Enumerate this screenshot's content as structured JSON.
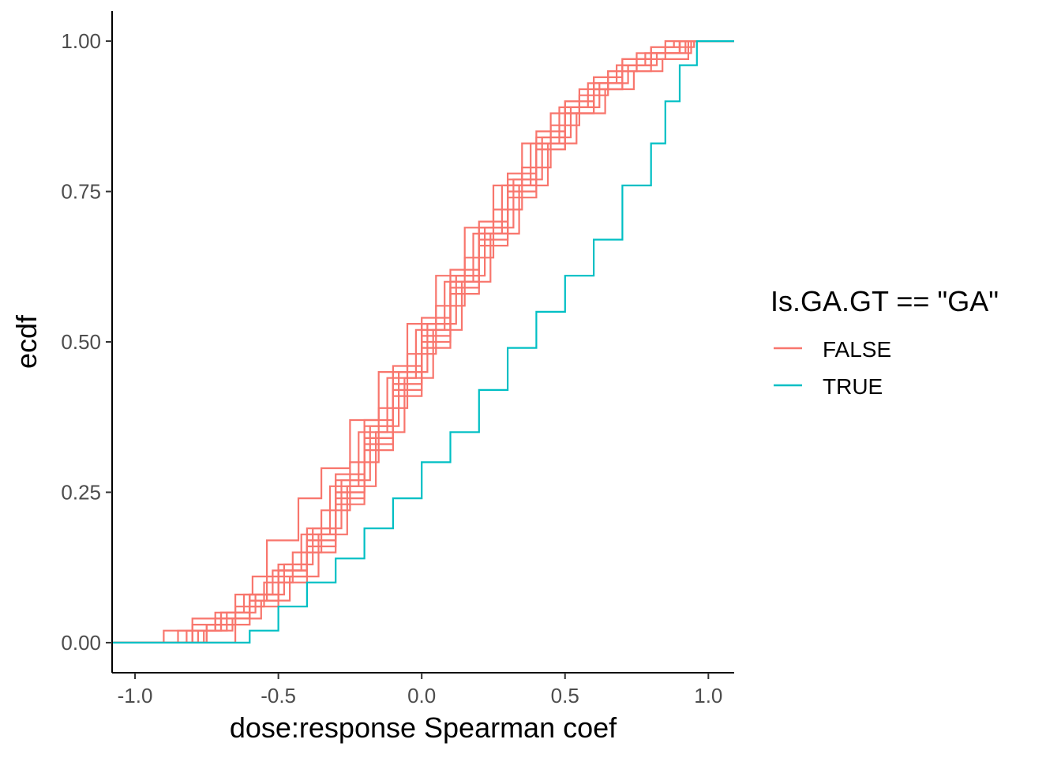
{
  "chart_data": {
    "type": "line",
    "xlabel": "dose:response Spearman coef",
    "ylabel": "ecdf",
    "xlim": [
      -1.08,
      1.09
    ],
    "ylim": [
      -0.05,
      1.05
    ],
    "x_ticks": [
      {
        "value": -1.0,
        "label": "-1.0"
      },
      {
        "value": -0.5,
        "label": "-0.5"
      },
      {
        "value": 0.0,
        "label": "0.0"
      },
      {
        "value": 0.5,
        "label": "0.5"
      },
      {
        "value": 1.0,
        "label": "1.0"
      }
    ],
    "y_ticks": [
      {
        "value": 0.0,
        "label": "0.00"
      },
      {
        "value": 0.25,
        "label": "0.25"
      },
      {
        "value": 0.5,
        "label": "0.50"
      },
      {
        "value": 0.75,
        "label": "0.75"
      },
      {
        "value": 1.0,
        "label": "1.00"
      }
    ],
    "grid": false,
    "legend": {
      "title": "Is.GA.GT == \"GA\"",
      "position": "right",
      "entries": [
        {
          "label": "FALSE",
          "color": "#F8766D"
        },
        {
          "label": "TRUE",
          "color": "#00BFC4"
        }
      ]
    },
    "series": [
      {
        "name": "FALSE",
        "color": "#F8766D",
        "x": [
          -1.08,
          -0.95,
          -0.9,
          -0.8,
          -0.7,
          -0.6,
          -0.5,
          -0.4,
          -0.3,
          -0.2,
          -0.1,
          0.0,
          0.1,
          0.2,
          0.3,
          0.4,
          0.5,
          0.6,
          0.7,
          0.8,
          0.9,
          1.09
        ],
        "y": [
          0.0,
          0.0,
          0.02,
          0.04,
          0.05,
          0.08,
          0.12,
          0.18,
          0.27,
          0.36,
          0.45,
          0.53,
          0.61,
          0.69,
          0.77,
          0.84,
          0.9,
          0.94,
          0.97,
          0.99,
          1.0,
          1.0
        ]
      },
      {
        "name": "FALSE",
        "color": "#F8766D",
        "x": [
          -1.08,
          -0.9,
          -0.8,
          -0.7,
          -0.6,
          -0.5,
          -0.4,
          -0.3,
          -0.2,
          -0.1,
          0.0,
          0.1,
          0.2,
          0.3,
          0.4,
          0.5,
          0.6,
          0.7,
          0.8,
          0.9,
          1.09
        ],
        "y": [
          0.0,
          0.0,
          0.02,
          0.04,
          0.06,
          0.1,
          0.15,
          0.23,
          0.32,
          0.41,
          0.49,
          0.58,
          0.66,
          0.74,
          0.82,
          0.89,
          0.93,
          0.96,
          0.98,
          1.0,
          1.0
        ]
      },
      {
        "name": "FALSE",
        "color": "#F8766D",
        "x": [
          -1.08,
          -0.92,
          -0.8,
          -0.7,
          -0.6,
          -0.5,
          -0.4,
          -0.3,
          -0.2,
          -0.1,
          0.0,
          0.1,
          0.2,
          0.3,
          0.4,
          0.5,
          0.6,
          0.7,
          0.8,
          0.9,
          1.09
        ],
        "y": [
          0.0,
          0.0,
          0.03,
          0.05,
          0.08,
          0.12,
          0.17,
          0.25,
          0.33,
          0.42,
          0.5,
          0.59,
          0.67,
          0.75,
          0.82,
          0.88,
          0.92,
          0.96,
          0.98,
          1.0,
          1.0
        ]
      },
      {
        "name": "FALSE",
        "color": "#F8766D",
        "x": [
          -1.08,
          -0.85,
          -0.75,
          -0.65,
          -0.55,
          -0.45,
          -0.35,
          -0.25,
          -0.15,
          -0.05,
          0.05,
          0.15,
          0.25,
          0.35,
          0.45,
          0.55,
          0.65,
          0.75,
          0.85,
          1.09
        ],
        "y": [
          0.0,
          0.0,
          0.03,
          0.06,
          0.1,
          0.15,
          0.22,
          0.3,
          0.39,
          0.48,
          0.56,
          0.64,
          0.72,
          0.79,
          0.86,
          0.91,
          0.95,
          0.98,
          1.0,
          1.0
        ]
      },
      {
        "name": "FALSE",
        "color": "#F8766D",
        "x": [
          -1.08,
          -0.95,
          -0.85,
          -0.72,
          -0.6,
          -0.5,
          -0.4,
          -0.3,
          -0.2,
          -0.1,
          0.0,
          0.1,
          0.2,
          0.3,
          0.4,
          0.5,
          0.6,
          0.7,
          0.8,
          0.92,
          1.09
        ],
        "y": [
          0.0,
          0.0,
          0.02,
          0.04,
          0.07,
          0.11,
          0.16,
          0.24,
          0.34,
          0.43,
          0.52,
          0.6,
          0.68,
          0.76,
          0.83,
          0.88,
          0.92,
          0.95,
          0.98,
          1.0,
          1.0
        ]
      },
      {
        "name": "FALSE",
        "color": "#F8766D",
        "x": [
          -1.08,
          -0.9,
          -0.75,
          -0.6,
          -0.5,
          -0.4,
          -0.3,
          -0.2,
          -0.1,
          0.0,
          0.1,
          0.2,
          0.3,
          0.4,
          0.5,
          0.6,
          0.7,
          0.8,
          0.88,
          1.09
        ],
        "y": [
          0.0,
          0.0,
          0.03,
          0.07,
          0.12,
          0.19,
          0.28,
          0.37,
          0.46,
          0.54,
          0.62,
          0.7,
          0.78,
          0.85,
          0.9,
          0.94,
          0.97,
          0.99,
          1.0,
          1.0
        ]
      },
      {
        "name": "FALSE",
        "color": "#F8766D",
        "x": [
          -1.08,
          -0.88,
          -0.78,
          -0.68,
          -0.58,
          -0.48,
          -0.38,
          -0.28,
          -0.18,
          -0.08,
          0.02,
          0.12,
          0.22,
          0.32,
          0.42,
          0.52,
          0.62,
          0.72,
          0.82,
          0.94,
          1.09
        ],
        "y": [
          0.0,
          0.0,
          0.02,
          0.05,
          0.08,
          0.13,
          0.19,
          0.27,
          0.36,
          0.45,
          0.53,
          0.61,
          0.69,
          0.77,
          0.84,
          0.89,
          0.93,
          0.96,
          0.98,
          1.0,
          1.0
        ]
      },
      {
        "name": "FALSE",
        "color": "#F8766D",
        "x": [
          -1.08,
          -0.73,
          -0.65,
          -0.59,
          -0.5,
          -0.4,
          -0.3,
          -0.2,
          -0.1,
          0.0,
          0.1,
          0.2,
          0.3,
          0.4,
          0.5,
          0.6,
          0.7,
          0.8,
          0.9,
          1.09
        ],
        "y": [
          0.0,
          0.0,
          0.08,
          0.11,
          0.13,
          0.17,
          0.25,
          0.34,
          0.43,
          0.51,
          0.6,
          0.68,
          0.76,
          0.83,
          0.89,
          0.93,
          0.96,
          0.98,
          1.0,
          1.0
        ]
      },
      {
        "name": "FALSE",
        "color": "#F8766D",
        "x": [
          -1.08,
          -0.9,
          -0.8,
          -0.7,
          -0.6,
          -0.54,
          -0.43,
          -0.35,
          -0.25,
          -0.15,
          -0.05,
          0.05,
          0.15,
          0.25,
          0.35,
          0.45,
          0.55,
          0.65,
          0.75,
          0.85,
          0.95,
          1.09
        ],
        "y": [
          0.0,
          0.0,
          0.02,
          0.04,
          0.07,
          0.17,
          0.24,
          0.29,
          0.37,
          0.45,
          0.53,
          0.61,
          0.69,
          0.76,
          0.83,
          0.88,
          0.92,
          0.95,
          0.97,
          0.99,
          1.0,
          1.0
        ]
      },
      {
        "name": "FALSE",
        "color": "#F8766D",
        "x": [
          -1.08,
          -0.86,
          -0.76,
          -0.66,
          -0.56,
          -0.46,
          -0.36,
          -0.26,
          -0.16,
          -0.06,
          0.04,
          0.14,
          0.24,
          0.34,
          0.44,
          0.54,
          0.64,
          0.74,
          0.84,
          0.93,
          1.09
        ],
        "y": [
          0.0,
          0.0,
          0.02,
          0.04,
          0.07,
          0.11,
          0.18,
          0.26,
          0.35,
          0.44,
          0.52,
          0.6,
          0.68,
          0.76,
          0.83,
          0.88,
          0.92,
          0.95,
          0.97,
          1.0,
          1.0
        ]
      },
      {
        "name": "FALSE",
        "color": "#F8766D",
        "x": [
          -1.08,
          -0.92,
          -0.82,
          -0.72,
          -0.62,
          -0.52,
          -0.42,
          -0.32,
          -0.22,
          -0.12,
          -0.02,
          0.08,
          0.18,
          0.28,
          0.38,
          0.48,
          0.58,
          0.68,
          0.78,
          0.9,
          1.09
        ],
        "y": [
          0.0,
          0.0,
          0.02,
          0.05,
          0.08,
          0.12,
          0.18,
          0.26,
          0.35,
          0.44,
          0.52,
          0.6,
          0.68,
          0.76,
          0.83,
          0.89,
          0.93,
          0.96,
          0.98,
          1.0,
          1.0
        ]
      },
      {
        "name": "TRUE",
        "color": "#00BFC4",
        "x": [
          -1.08,
          -0.7,
          -0.6,
          -0.5,
          -0.4,
          -0.3,
          -0.2,
          -0.1,
          0.0,
          0.1,
          0.2,
          0.3,
          0.4,
          0.5,
          0.6,
          0.7,
          0.8,
          0.85,
          0.9,
          0.96,
          1.09
        ],
        "y": [
          0.0,
          0.0,
          0.02,
          0.06,
          0.1,
          0.14,
          0.19,
          0.24,
          0.3,
          0.35,
          0.42,
          0.49,
          0.55,
          0.61,
          0.67,
          0.76,
          0.83,
          0.9,
          0.96,
          1.0,
          1.0
        ]
      }
    ]
  }
}
